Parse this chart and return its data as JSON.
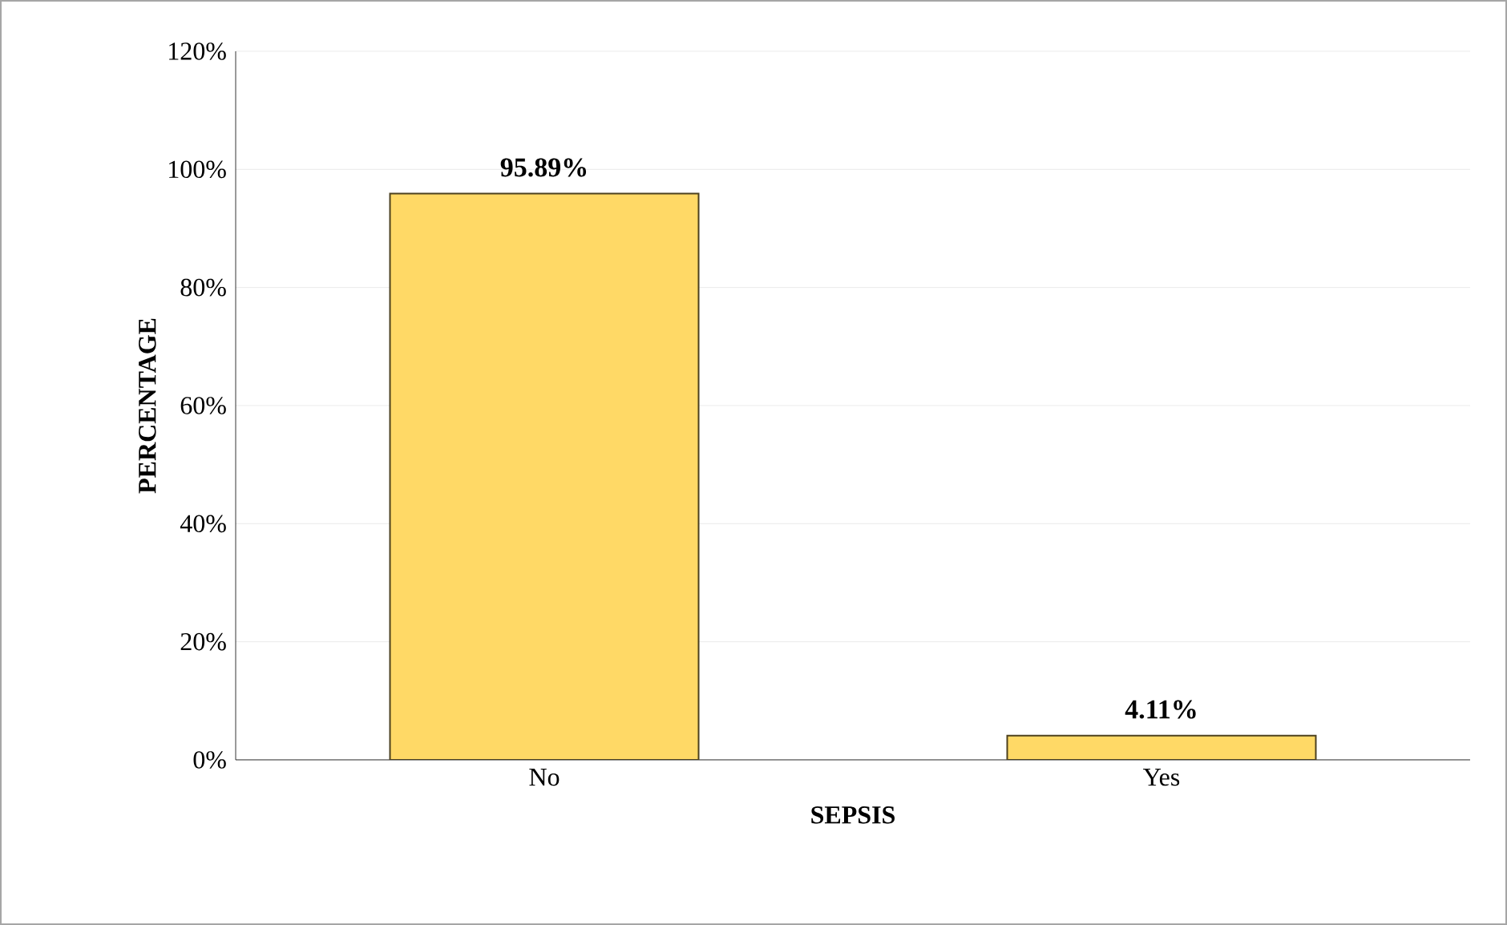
{
  "chart_data": {
    "type": "bar",
    "xlabel": "SEPSIS",
    "ylabel": "PERCENTAGE",
    "categories": [
      "No",
      "Yes"
    ],
    "values": [
      95.89,
      4.11
    ],
    "value_labels": [
      "95.89%",
      "4.11%"
    ],
    "color": "#ffd966",
    "ylim": [
      0,
      120
    ],
    "yticks": [
      {
        "value": 0,
        "label": "0%"
      },
      {
        "value": 20,
        "label": "20%"
      },
      {
        "value": 40,
        "label": "40%"
      },
      {
        "value": 60,
        "label": "60%"
      },
      {
        "value": 80,
        "label": "80%"
      },
      {
        "value": 100,
        "label": "100%"
      },
      {
        "value": 120,
        "label": "120%"
      }
    ],
    "grid": "y"
  }
}
